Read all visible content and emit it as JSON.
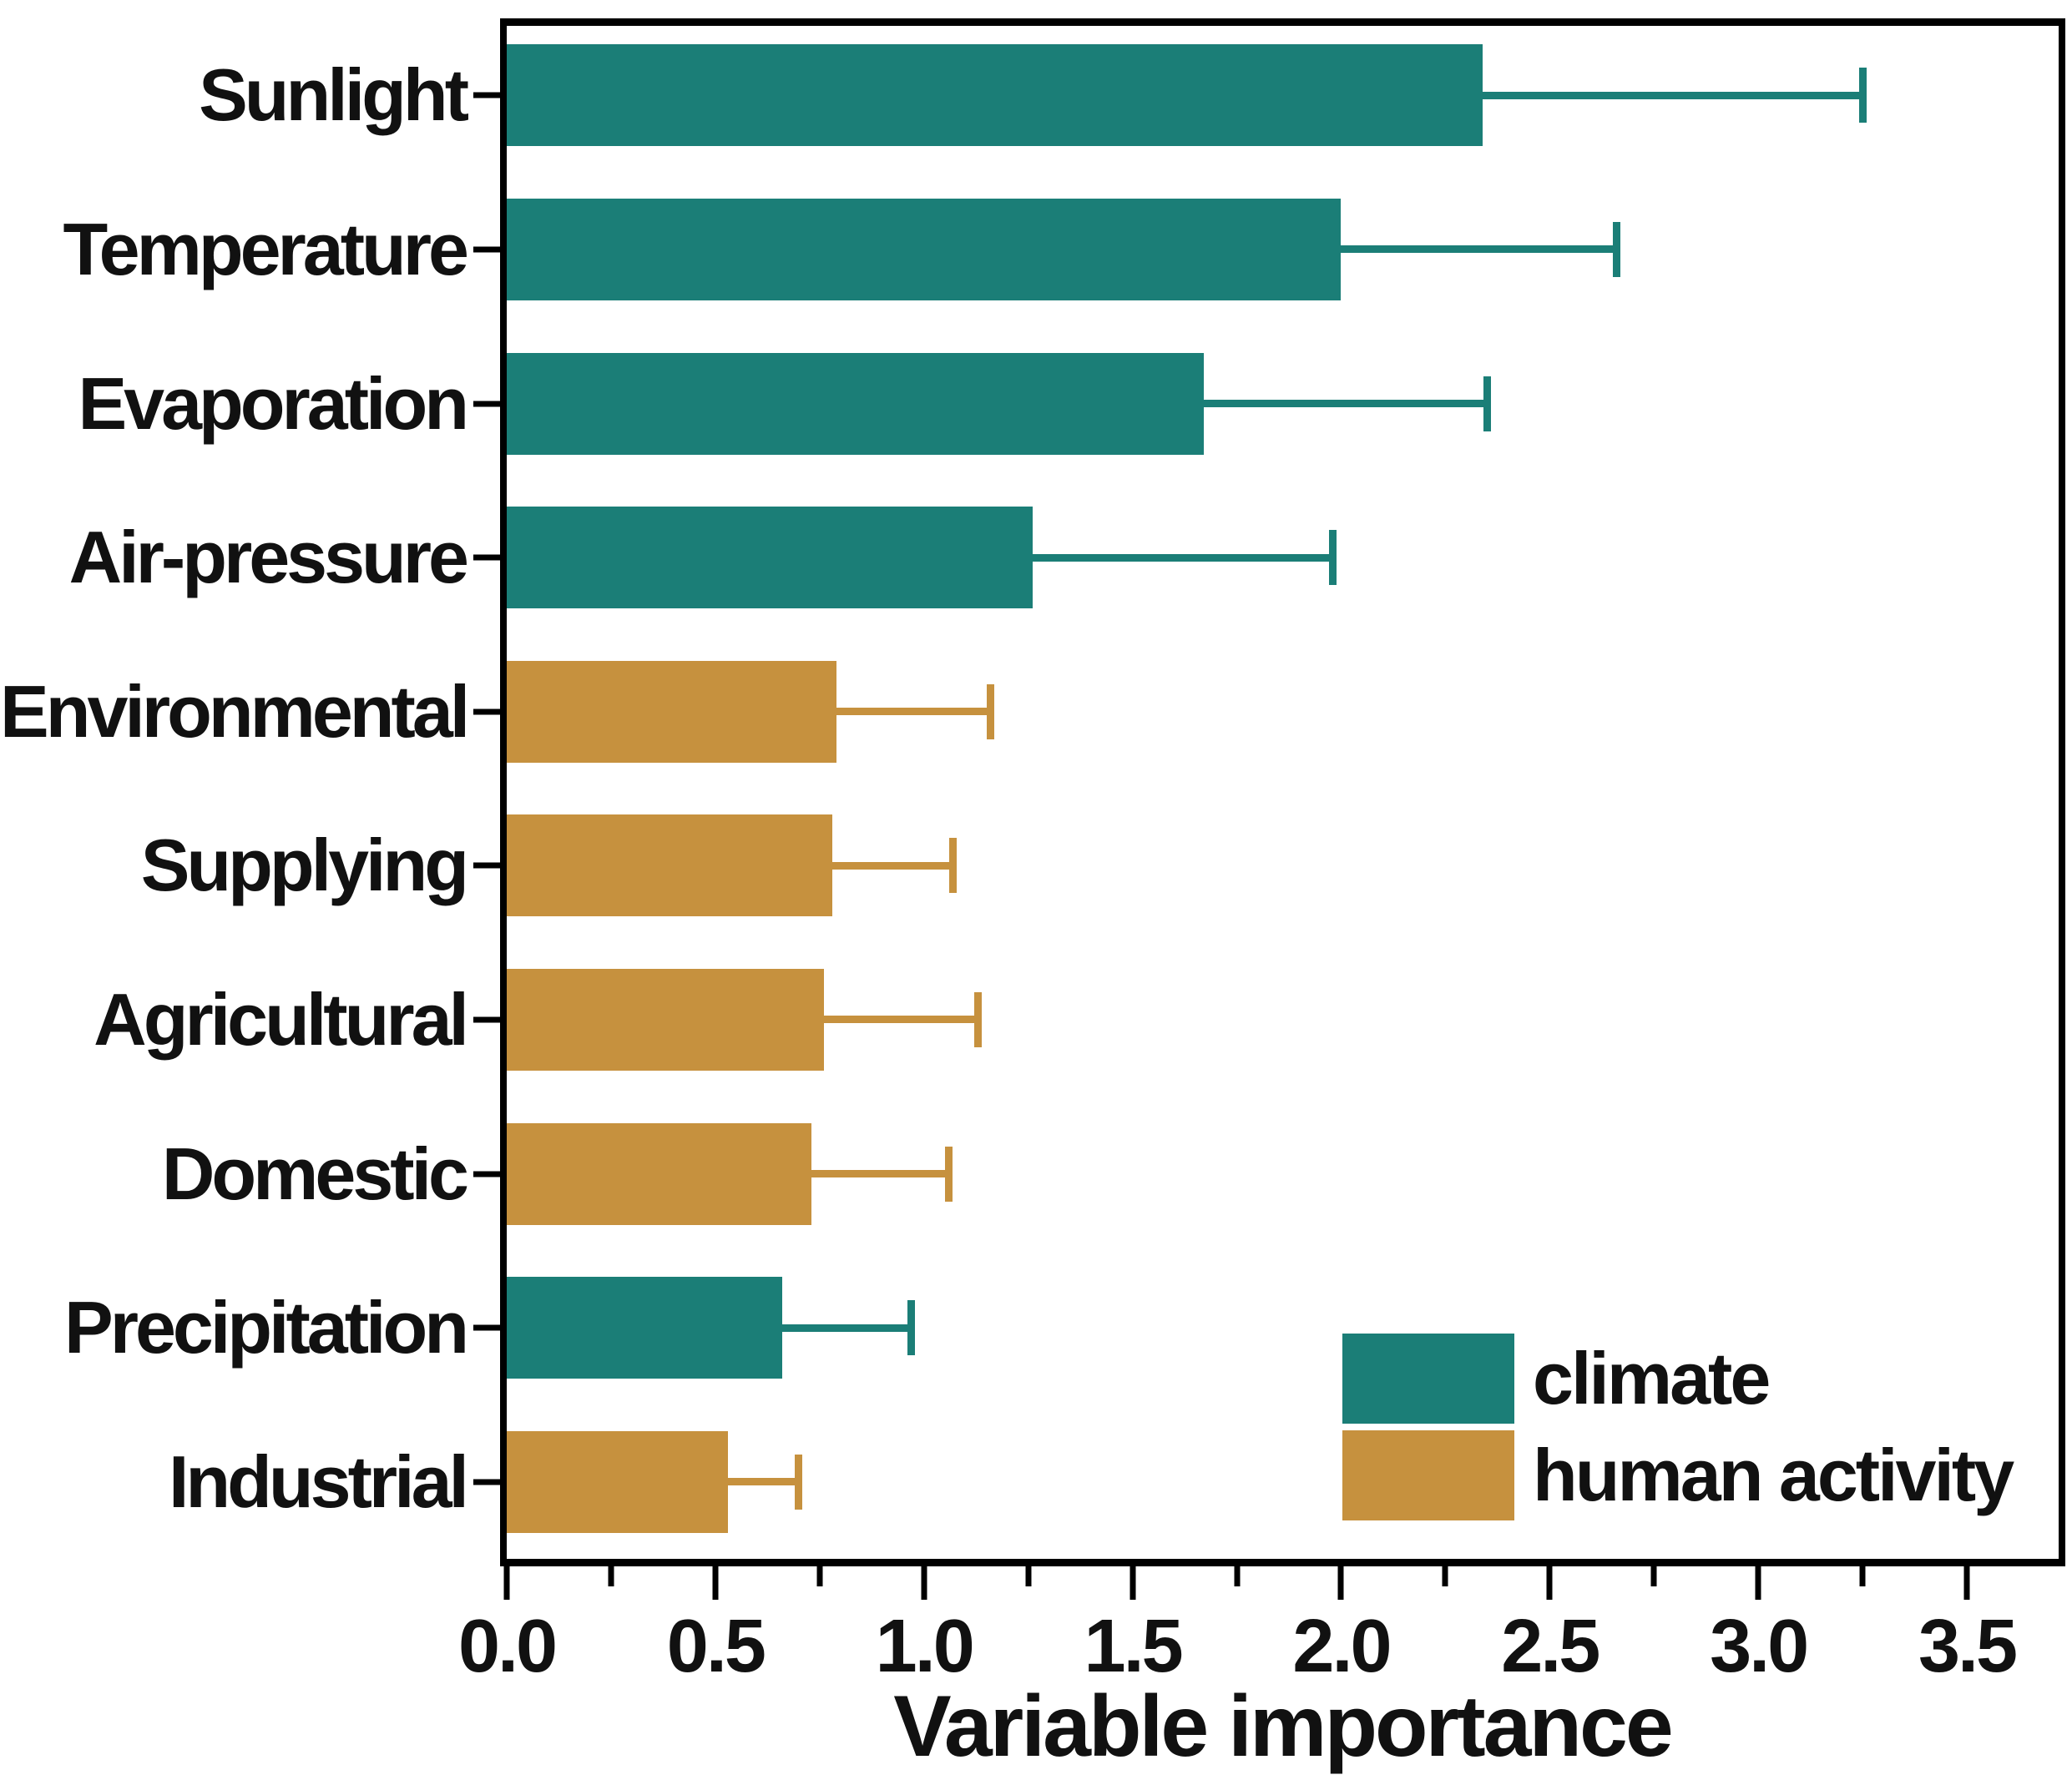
{
  "chart_data": {
    "type": "bar",
    "orientation": "horizontal",
    "title": "",
    "xlabel": "Variable importance",
    "xlim": [
      0,
      3.72
    ],
    "xticks": [
      0.0,
      0.5,
      1.0,
      1.5,
      2.0,
      2.5,
      3.0,
      3.5
    ],
    "xtick_labels": [
      "0.0",
      "0.5",
      "1.0",
      "1.5",
      "2.0",
      "2.5",
      "3.0",
      "3.5"
    ],
    "minor_tick_step": 0.25,
    "grid": false,
    "categories": [
      "Sunlight",
      "Temperature",
      "Evaporation",
      "Air-pressure",
      "Environmental",
      "Supplying",
      "Agricultural",
      "Domestic",
      "Precipitation",
      "Industrial"
    ],
    "values": [
      2.34,
      2.0,
      1.67,
      1.26,
      0.79,
      0.78,
      0.76,
      0.73,
      0.66,
      0.53
    ],
    "upper_whisker": [
      3.25,
      2.66,
      2.35,
      1.98,
      1.16,
      1.07,
      1.13,
      1.06,
      0.97,
      0.7
    ],
    "bar_groups": [
      "climate",
      "climate",
      "climate",
      "climate",
      "human activity",
      "human activity",
      "human activity",
      "human activity",
      "climate",
      "human activity"
    ],
    "legend": {
      "position": "lower right",
      "entries": [
        {
          "label": "climate",
          "color": "#1b7e77"
        },
        {
          "label": "human activity",
          "color": "#c6913e"
        }
      ]
    },
    "colors": {
      "climate": "#1b7e77",
      "human_activity": "#c6913e",
      "axis": "#000000",
      "background": "#ffffff"
    }
  }
}
